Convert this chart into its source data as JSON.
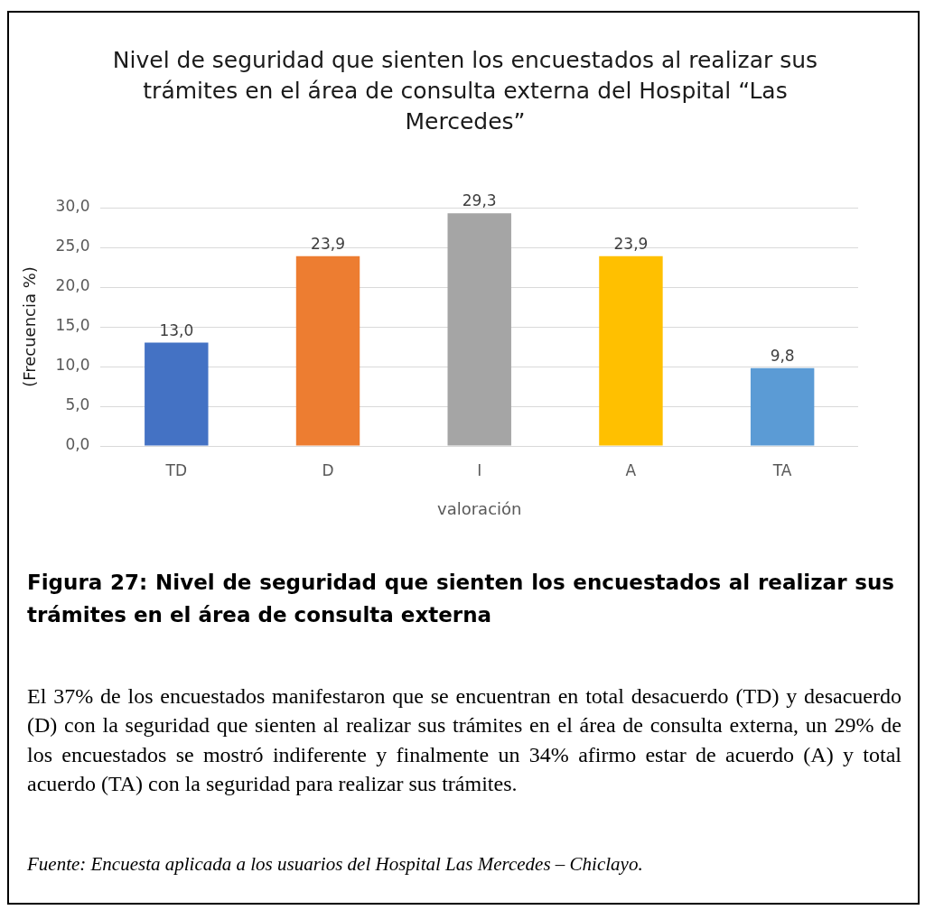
{
  "chart_data": {
    "type": "bar",
    "title": "Nivel de seguridad que sienten los encuestados al realizar sus trámites en el área de consulta externa del Hospital “Las Mercedes”",
    "xlabel": "valoración",
    "ylabel": "(Frecuencia %)",
    "categories": [
      "TD",
      "D",
      "I",
      "A",
      "TA"
    ],
    "values": [
      13.0,
      23.9,
      29.3,
      23.9,
      9.8
    ],
    "value_labels": [
      "13,0",
      "23,9",
      "29,3",
      "23,9",
      "9,8"
    ],
    "colors": [
      "#4472c4",
      "#ed7d31",
      "#a5a5a5",
      "#ffc000",
      "#5b9bd5"
    ],
    "ylim": [
      0,
      30
    ],
    "yticks": [
      {
        "value": 0,
        "label": "0,0"
      },
      {
        "value": 5,
        "label": "5,0"
      },
      {
        "value": 10,
        "label": "10,0"
      },
      {
        "value": 15,
        "label": "15,0"
      },
      {
        "value": 20,
        "label": "20,0"
      },
      {
        "value": 25,
        "label": "25,0"
      },
      {
        "value": 30,
        "label": "30,0"
      }
    ],
    "grid": "y",
    "legend": false,
    "annotations": [
      "Figura 27: Nivel de seguridad que sienten los encuestados al realizar sus trámites en el área de consulta externa",
      "El 37% de los encuestados manifestaron que se encuentran en total desacuerdo (TD) y desacuerdo (D) con la seguridad que sienten al realizar sus trámites en el área de consulta externa, un 29% de los encuestados se mostró indiferente y finalmente un 34% afirmo estar de acuerdo (A) y total acuerdo (TA) con la seguridad para realizar sus trámites.",
      "Fuente: Encuesta aplicada a los usuarios del Hospital Las Mercedes – Chiclayo."
    ]
  }
}
